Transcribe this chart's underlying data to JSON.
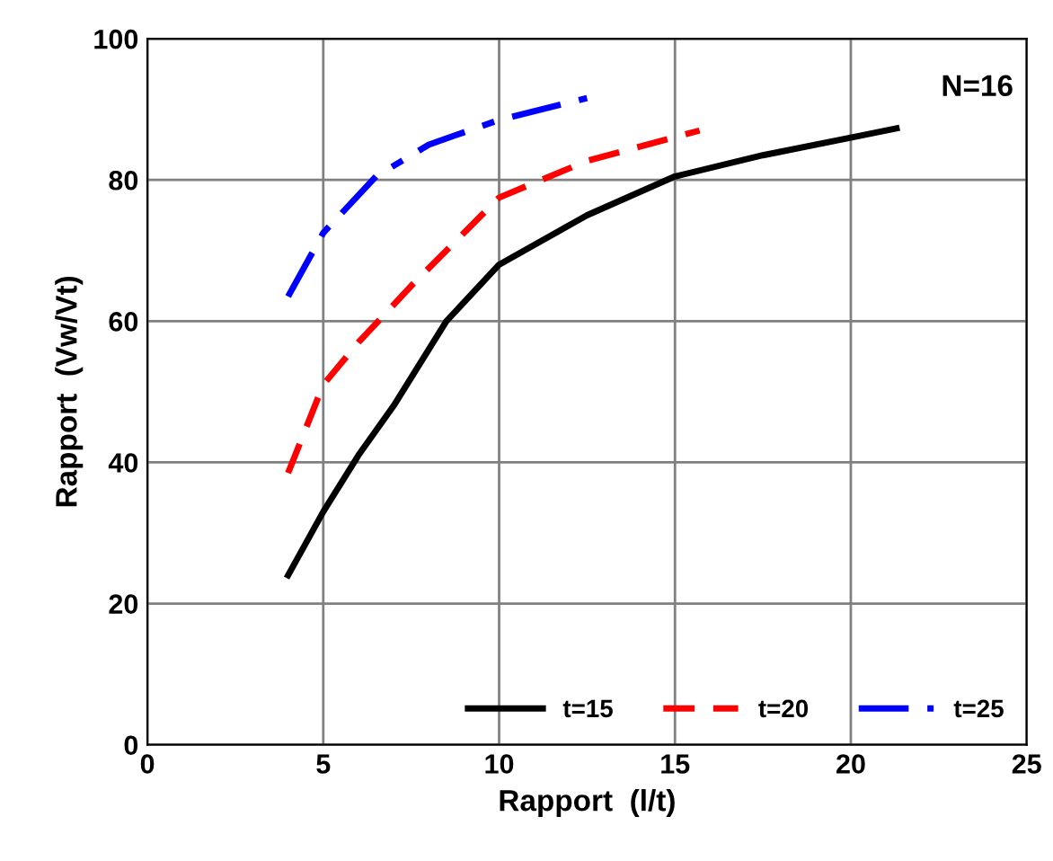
{
  "chart_data": {
    "type": "line",
    "xlabel": "Rapport  (l/t)",
    "ylabel": "Rapport  (Vw/Vt)",
    "xlim": [
      0,
      25
    ],
    "xticks": [
      0,
      5,
      10,
      15,
      20,
      25
    ],
    "ylim": [
      0,
      100
    ],
    "yticks": [
      0,
      20,
      40,
      60,
      80,
      100
    ],
    "grid": true,
    "legend": "bottom right",
    "annotations": [
      "N=16"
    ],
    "series": [
      {
        "name": "t=15",
        "color": "#000000",
        "line_style": "solid",
        "x": [
          4,
          5,
          6,
          7,
          8.5,
          10,
          12.5,
          15,
          17.5,
          20,
          21.3
        ],
        "values": [
          24,
          33,
          41,
          48,
          60,
          68,
          75,
          80.5,
          83.5,
          86,
          87.3
        ]
      },
      {
        "name": "t=20",
        "color": "#ff0000",
        "line_style": "dashed",
        "x": [
          4,
          5,
          6,
          7.5,
          10,
          12.5,
          15.7
        ],
        "values": [
          38.5,
          51,
          57,
          65,
          77.5,
          82.7,
          87
        ]
      },
      {
        "name": "t=25",
        "color": "#0000ff",
        "line_style": "dashdot",
        "x": [
          4,
          5,
          6.5,
          8,
          10,
          12.5
        ],
        "values": [
          63.5,
          72.5,
          80.5,
          85,
          88.5,
          91.6
        ]
      }
    ]
  }
}
